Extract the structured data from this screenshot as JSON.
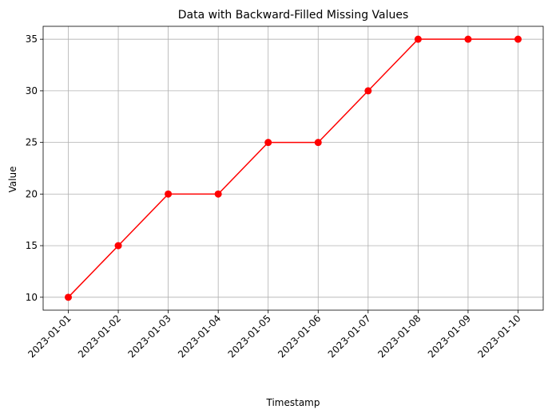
{
  "chart_data": {
    "type": "line",
    "title": "Data with Backward-Filled Missing Values",
    "xlabel": "Timestamp",
    "ylabel": "Value",
    "x": [
      "2023-01-01",
      "2023-01-02",
      "2023-01-03",
      "2023-01-04",
      "2023-01-05",
      "2023-01-06",
      "2023-01-07",
      "2023-01-08",
      "2023-01-09",
      "2023-01-10"
    ],
    "series": [
      {
        "values": [
          10,
          15,
          20,
          20,
          25,
          25,
          30,
          35,
          35,
          35
        ],
        "color": "#ff0000",
        "marker": "circle"
      }
    ],
    "ylim": [
      8.75,
      36.25
    ],
    "yticks": [
      10,
      15,
      20,
      25,
      30,
      35
    ],
    "grid": true,
    "colors": {
      "line": "#ff0000",
      "grid": "#b0b0b0",
      "axes": "#000000"
    }
  }
}
